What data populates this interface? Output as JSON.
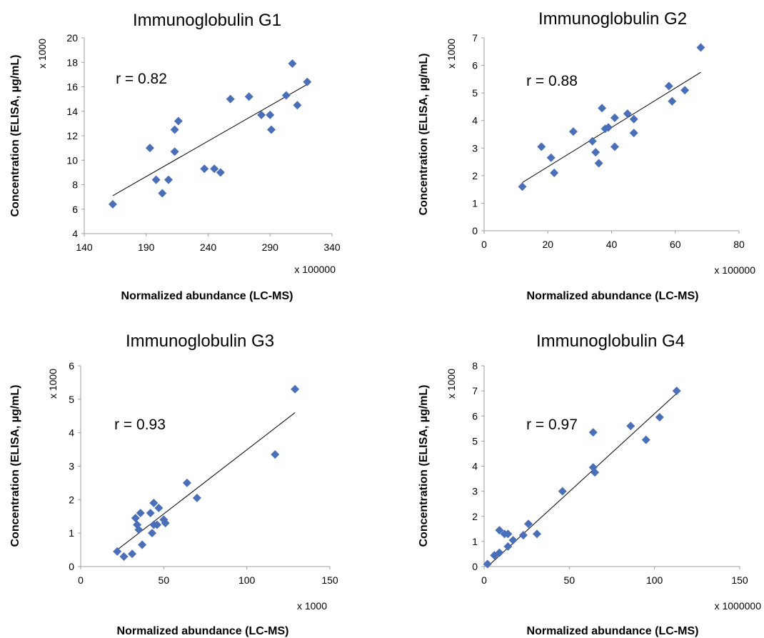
{
  "chart_data": [
    {
      "type": "scatter",
      "title": "Immunoglobulin G1",
      "xlabel": "Normalized abundance (LC-MS)",
      "ylabel": "Concentration (ELISA, µg/mL)",
      "x_multiplier": "x 100000",
      "y_multiplier": "x 1000",
      "annotation": "r = 0.82",
      "xlim": [
        140,
        340
      ],
      "ylim": [
        4,
        20
      ],
      "xticks": [
        "140",
        "190",
        "240",
        "290",
        "340"
      ],
      "yticks": [
        "4",
        "6",
        "8",
        "10",
        "12",
        "14",
        "16",
        "18",
        "20"
      ],
      "trendline": [
        [
          163,
          7.1
        ],
        [
          320,
          16.2
        ]
      ],
      "points": [
        [
          163,
          6.4
        ],
        [
          193,
          11.0
        ],
        [
          198,
          8.4
        ],
        [
          203,
          7.3
        ],
        [
          208,
          8.4
        ],
        [
          213,
          12.5
        ],
        [
          213,
          10.7
        ],
        [
          216,
          13.2
        ],
        [
          237,
          9.3
        ],
        [
          245,
          9.3
        ],
        [
          250,
          9.0
        ],
        [
          258,
          15.0
        ],
        [
          273,
          15.2
        ],
        [
          283,
          13.7
        ],
        [
          290,
          13.7
        ],
        [
          291,
          12.5
        ],
        [
          303,
          15.3
        ],
        [
          308,
          17.9
        ],
        [
          312,
          14.5
        ],
        [
          320,
          16.4
        ]
      ],
      "grid": false
    },
    {
      "type": "scatter",
      "title": "Immunoglobulin G2",
      "xlabel": "Normalized abundance (LC-MS)",
      "ylabel": "Concentration (ELISA, µg/mL)",
      "x_multiplier": "x 100000",
      "y_multiplier": "x 1000",
      "annotation": "r = 0.88",
      "xlim": [
        0,
        80
      ],
      "ylim": [
        0,
        7
      ],
      "xticks": [
        "0",
        "20",
        "40",
        "60",
        "80"
      ],
      "yticks": [
        "0",
        "1",
        "2",
        "3",
        "4",
        "5",
        "6",
        "7"
      ],
      "trendline": [
        [
          12,
          1.75
        ],
        [
          68,
          5.75
        ]
      ],
      "points": [
        [
          12,
          1.6
        ],
        [
          18,
          3.05
        ],
        [
          21,
          2.65
        ],
        [
          22,
          2.1
        ],
        [
          28,
          3.6
        ],
        [
          34,
          3.25
        ],
        [
          35,
          2.85
        ],
        [
          36,
          2.45
        ],
        [
          37,
          4.45
        ],
        [
          38,
          3.7
        ],
        [
          39,
          3.75
        ],
        [
          41,
          3.05
        ],
        [
          41,
          4.1
        ],
        [
          45,
          4.25
        ],
        [
          47,
          4.05
        ],
        [
          47,
          3.55
        ],
        [
          58,
          5.25
        ],
        [
          59,
          4.7
        ],
        [
          63,
          5.1
        ],
        [
          68,
          6.65
        ]
      ],
      "grid": false
    },
    {
      "type": "scatter",
      "title": "Immunoglobulin G3",
      "xlabel": "Normalized abundance (LC-MS)",
      "ylabel": "Concentration (ELISA, µg/mL)",
      "x_multiplier": "x 1000",
      "y_multiplier": "x 1000",
      "annotation": "r = 0.93",
      "xlim": [
        0,
        150
      ],
      "ylim": [
        0,
        6
      ],
      "xticks": [
        "0",
        "50",
        "100",
        "150"
      ],
      "yticks": [
        "0",
        "1",
        "2",
        "3",
        "4",
        "5",
        "6"
      ],
      "trendline": [
        [
          22,
          0.5
        ],
        [
          129,
          4.6
        ]
      ],
      "points": [
        [
          22,
          0.45
        ],
        [
          26,
          0.3
        ],
        [
          31,
          0.38
        ],
        [
          33,
          1.45
        ],
        [
          34,
          1.25
        ],
        [
          35,
          1.1
        ],
        [
          36,
          1.6
        ],
        [
          37,
          0.65
        ],
        [
          42,
          1.6
        ],
        [
          43,
          1.0
        ],
        [
          44,
          1.25
        ],
        [
          44,
          1.9
        ],
        [
          46,
          1.25
        ],
        [
          47,
          1.75
        ],
        [
          50,
          1.4
        ],
        [
          51,
          1.3
        ],
        [
          64,
          2.5
        ],
        [
          70,
          2.05
        ],
        [
          117,
          3.35
        ],
        [
          129,
          5.3
        ]
      ],
      "grid": false
    },
    {
      "type": "scatter",
      "title": "Immunoglobulin G4",
      "xlabel": "Normalized abundance (LC-MS)",
      "ylabel": "Concentration (ELISA, µg/mL)",
      "x_multiplier": "x 1000000",
      "y_multiplier": "x 1000",
      "annotation": "r = 0.97",
      "xlim": [
        0,
        150
      ],
      "ylim": [
        0,
        8
      ],
      "xticks": [
        "0",
        "50",
        "100",
        "150"
      ],
      "yticks": [
        "0",
        "1",
        "2",
        "3",
        "4",
        "5",
        "6",
        "7",
        "8"
      ],
      "trendline": [
        [
          2,
          0.0
        ],
        [
          113,
          6.9
        ]
      ],
      "points": [
        [
          2,
          0.1
        ],
        [
          6,
          0.45
        ],
        [
          9,
          0.55
        ],
        [
          9,
          1.45
        ],
        [
          12,
          1.3
        ],
        [
          14,
          0.8
        ],
        [
          14,
          1.3
        ],
        [
          17,
          1.05
        ],
        [
          23,
          1.25
        ],
        [
          26,
          1.7
        ],
        [
          31,
          1.3
        ],
        [
          46,
          3.0
        ],
        [
          64,
          5.35
        ],
        [
          64,
          3.95
        ],
        [
          65,
          3.75
        ],
        [
          86,
          5.6
        ],
        [
          95,
          5.05
        ],
        [
          103,
          5.95
        ],
        [
          113,
          7.0
        ]
      ],
      "grid": false
    }
  ]
}
